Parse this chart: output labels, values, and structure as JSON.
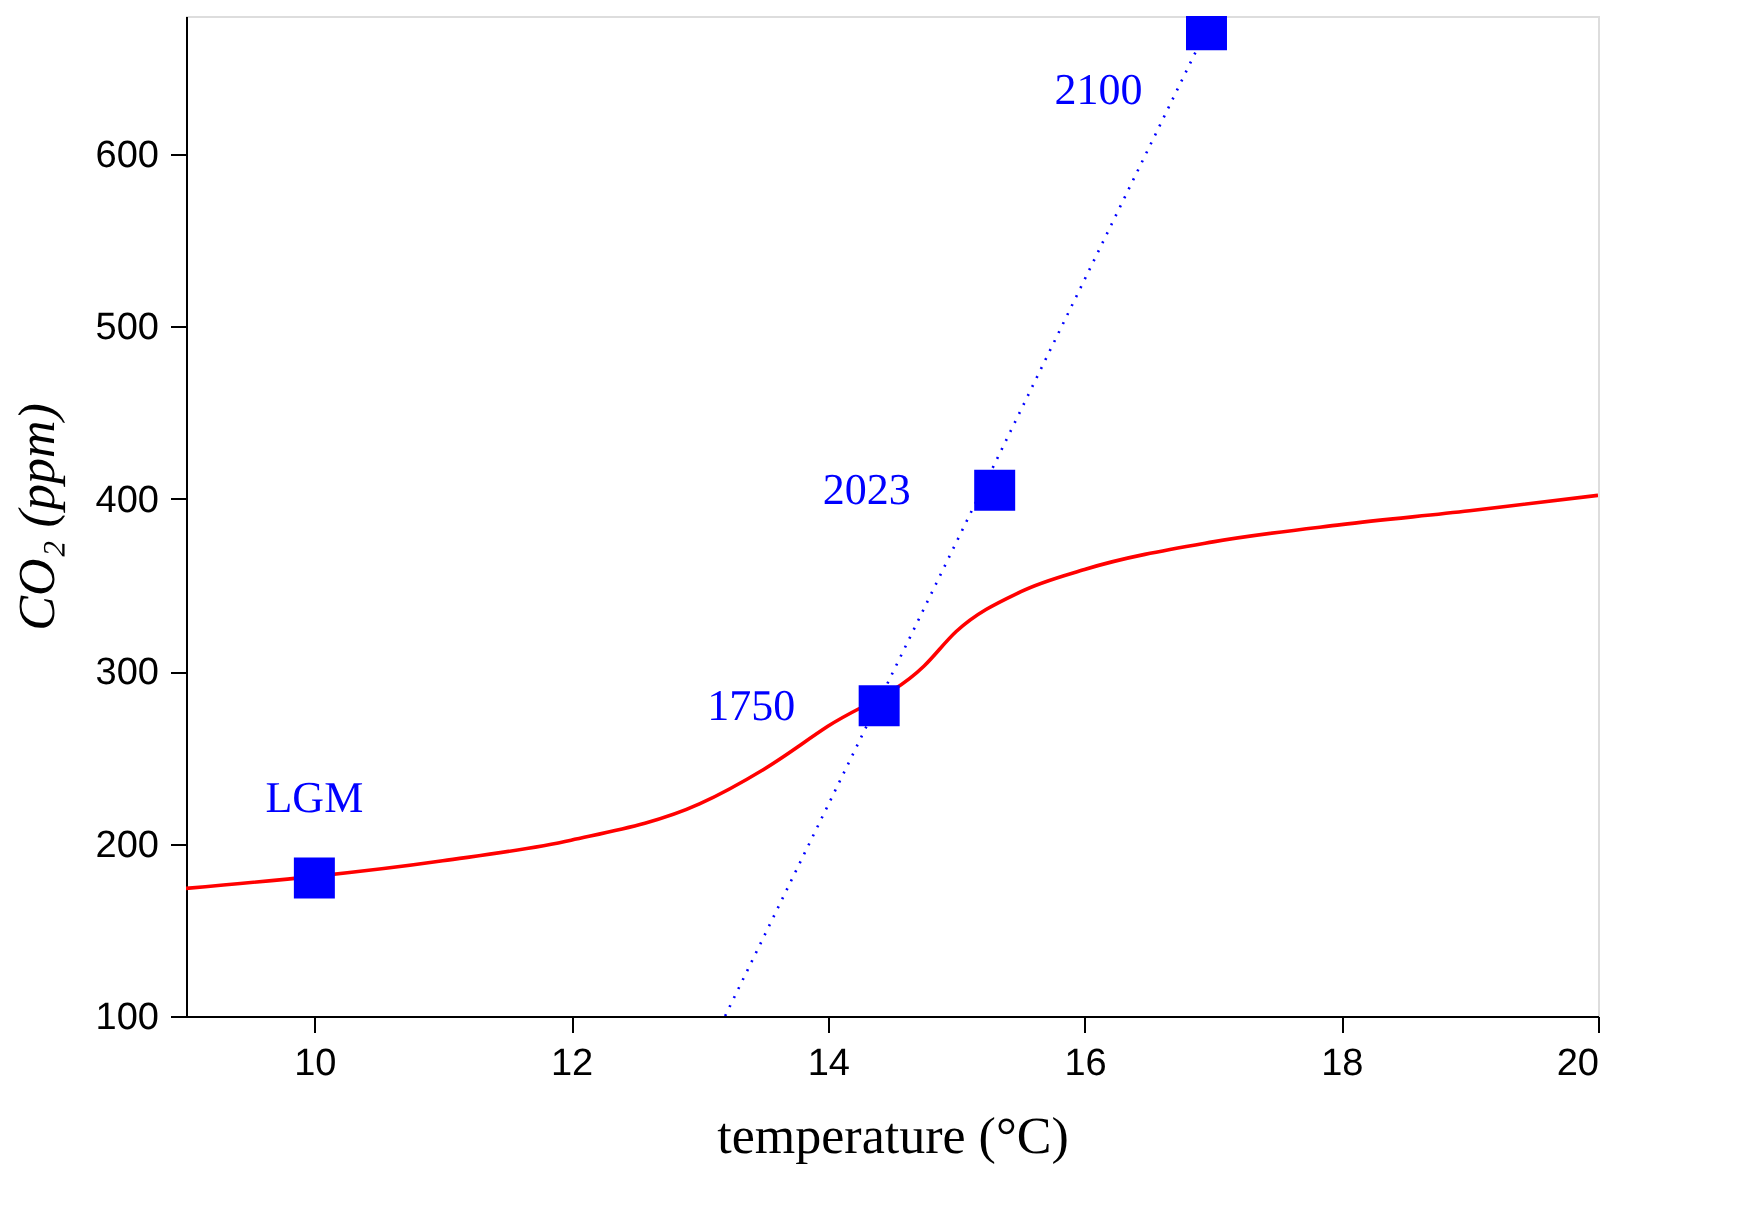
{
  "chart_data": {
    "type": "line",
    "xlabel": "temperature (°C)",
    "ylabel": "CO₂ (ppm)",
    "xlim": [
      9,
      20
    ],
    "xticks": [
      10,
      12,
      14,
      16,
      18,
      20
    ],
    "ylim": [
      100,
      680
    ],
    "yticks": [
      100,
      200,
      300,
      400,
      500,
      600
    ],
    "grid": false,
    "series": [
      {
        "color": "#ff0000",
        "line_style": "solid",
        "x": [
          9,
          11,
          12,
          13,
          13.5,
          14,
          14.75,
          15,
          15.5,
          16,
          17,
          18,
          19,
          20
        ],
        "values": [
          174,
          190,
          202,
          223,
          243,
          268,
          303,
          323,
          346,
          359,
          375,
          385,
          393,
          402
        ]
      },
      {
        "type": "line",
        "color": "#0000ff",
        "line_style": "dotted",
        "x": [
          13.2,
          16.95
        ],
        "values": [
          100,
          672
        ]
      },
      {
        "type": "scatter",
        "color": "#0000ff",
        "marker": "square",
        "x": [
          10,
          14.4,
          15.3,
          16.95
        ],
        "values": [
          180,
          280,
          405,
          672
        ]
      }
    ],
    "annotations": [
      {
        "text": "LGM",
        "x": 10,
        "y": 180
      },
      {
        "text": "1750",
        "x": 14.4,
        "y": 280
      },
      {
        "text": "2023",
        "x": 15.3,
        "y": 405
      },
      {
        "text": "2100",
        "x": 16.95,
        "y": 672
      }
    ]
  }
}
